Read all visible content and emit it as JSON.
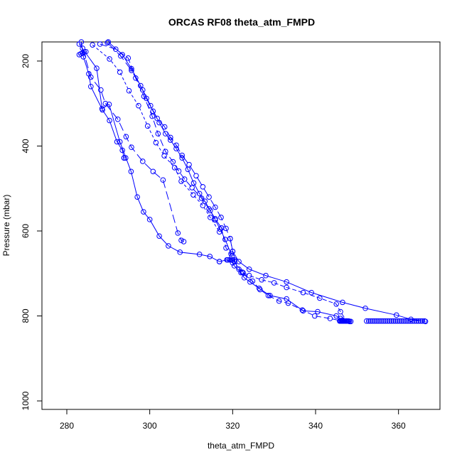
{
  "chart_data": {
    "type": "line",
    "title": "ORCAS RF08 theta_atm_FMPD",
    "xlabel": "theta_atm_FMPD",
    "ylabel": "Pressure (mbar)",
    "xlim": [
      274,
      370
    ],
    "ylim": [
      1020,
      155
    ],
    "y_reversed": true,
    "x_ticks": [
      280,
      300,
      320,
      340,
      360
    ],
    "x_tick_labels": [
      "280",
      "300",
      "320",
      "340",
      "360"
    ],
    "y_ticks": [
      200,
      400,
      600,
      800,
      1000
    ],
    "y_tick_labels": [
      "200",
      "400",
      "600",
      "800",
      "1000"
    ],
    "grid": false,
    "legend": "none",
    "line_color": "#0000ff",
    "marker": "open-circle",
    "line_style": "dashed-mixed",
    "series": [
      {
        "x": [
          283.5,
          284.0,
          285.3,
          285.8,
          288.6,
          290.3,
          292.1,
          293.4,
          293.8
        ],
        "y": [
          155,
          190,
          230,
          260,
          315,
          340,
          390,
          410,
          428
        ]
      },
      {
        "x": [
          293.8,
          294.2
        ],
        "y": [
          428,
          428
        ]
      },
      {
        "x": [
          283.0,
          287.2,
          288.5,
          290.2,
          292.8,
          295.5,
          297.0,
          298.5,
          300.0,
          302.3,
          304.5,
          307.3,
          312.0,
          314.5,
          316.8
        ],
        "y": [
          160,
          217,
          312,
          302,
          390,
          460,
          520,
          555,
          573,
          612,
          635,
          650,
          655,
          660,
          672
        ]
      },
      {
        "x": [
          283.8,
          285.8,
          288.2,
          289.3,
          292.3,
          294.3,
          295.6,
          298.3,
          300.8,
          303.2,
          306.8,
          307.6,
          308.2
        ],
        "y": [
          170,
          238,
          268,
          300,
          337,
          378,
          403,
          436,
          460,
          480,
          605,
          622,
          625
        ]
      },
      {
        "x": [
          286.2,
          290.3,
          292.8,
          295.0,
          297.3,
          299.5,
          301.5,
          303.5,
          306.0,
          307.6,
          310.5,
          312.8,
          314.6,
          316.8
        ],
        "y": [
          162,
          195,
          226,
          270,
          305,
          353,
          392,
          423,
          451,
          483,
          515,
          540,
          568,
          602
        ]
      },
      {
        "x": [
          288.0,
          291.8,
          294.8,
          296.6,
          298.6,
          300.6,
          302.0,
          303.8,
          305.6,
          307.0,
          308.4,
          310.2,
          312.5,
          314.3,
          315.8,
          317.3
        ],
        "y": [
          160,
          172,
          193,
          240,
          283,
          330,
          371,
          413,
          437,
          459,
          478,
          498,
          523,
          548,
          571,
          593
        ]
      },
      {
        "x": [
          290.0,
          293.4,
          295.6,
          297.8,
          299.2,
          300.8,
          302.3,
          303.8,
          305.0,
          306.4,
          307.8,
          309.2,
          310.6,
          312.0,
          313.3,
          314.6,
          315.8,
          317.0,
          318.2,
          319.6
        ],
        "y": [
          155,
          185,
          218,
          258,
          288,
          318,
          345,
          371,
          386,
          406,
          428,
          455,
          487,
          512,
          530,
          552,
          574,
          596,
          620,
          654
        ]
      },
      {
        "x": [
          289.8,
          293.0,
          295.6,
          298.3,
          300.2,
          301.8,
          303.6,
          305.0,
          306.4,
          307.8,
          309.5,
          311.2,
          312.8,
          314.3,
          315.8,
          317.2,
          318.4,
          319.4,
          320.0
        ],
        "y": [
          157,
          188,
          222,
          268,
          305,
          335,
          355,
          380,
          398,
          422,
          444,
          470,
          496,
          520,
          544,
          568,
          594,
          618,
          648
        ]
      },
      {
        "x": [
          316.8,
          318.6,
          320.0,
          320.4,
          322.0,
          322.8,
          324.2,
          326.4,
          329.0,
          333.0,
          337.0,
          340.5,
          345.0,
          346.0,
          346.5,
          347.5,
          348.0,
          348.2
        ],
        "y": [
          672,
          668,
          675,
          682,
          698,
          710,
          720,
          735,
          752,
          760,
          788,
          790,
          800,
          806,
          810,
          812,
          812,
          813
        ]
      },
      {
        "x": [
          317.3,
          318.4,
          319.8,
          320.5,
          322.3,
          324.8,
          326.6,
          328.6,
          331.2,
          333.4,
          336.8,
          339.8,
          343.5,
          346.5,
          348.5
        ],
        "y": [
          593,
          640,
          660,
          672,
          697,
          718,
          738,
          752,
          765,
          770,
          786,
          800,
          806,
          812,
          813
        ]
      },
      {
        "x": [
          319.4,
          320.5,
          321.5,
          322.5,
          324.0,
          327.0,
          330.0,
          333.0,
          337.0,
          341.0,
          345.0,
          346.0,
          347.5
        ],
        "y": [
          618,
          672,
          690,
          698,
          705,
          715,
          722,
          733,
          745,
          758,
          772,
          790,
          812
        ]
      },
      {
        "x": [
          320.0,
          321.5,
          324.0,
          328.0,
          333.0,
          339.0,
          346.5,
          352.0,
          359.5,
          363.0,
          366.5
        ],
        "y": [
          648,
          672,
          690,
          705,
          720,
          745,
          768,
          782,
          798,
          808,
          813
        ]
      },
      {
        "x": [
          345.8,
          346.0,
          346.2,
          346.4,
          346.6,
          346.8,
          347.0,
          347.2,
          347.4,
          347.6,
          347.8
        ],
        "y": [
          812,
          812,
          812,
          812,
          812,
          812,
          812,
          812,
          812,
          812,
          812
        ]
      },
      {
        "x": [
          352.3,
          352.8,
          353.3,
          353.8,
          354.3,
          354.8,
          355.3,
          355.8,
          356.3,
          356.8,
          357.3,
          357.8,
          358.3,
          358.8,
          359.3,
          359.8,
          360.3,
          360.8,
          361.3,
          361.8,
          362.3,
          362.8,
          363.3,
          363.8,
          364.3,
          364.8,
          365.3,
          365.8,
          366.3
        ],
        "y": [
          812,
          812,
          812,
          812,
          812,
          812,
          812,
          812,
          812,
          812,
          812,
          812,
          812,
          812,
          812,
          812,
          812,
          812,
          812,
          812,
          812,
          812,
          812,
          812,
          812,
          812,
          812,
          812,
          812
        ]
      },
      {
        "x": [
          318.8,
          319.2,
          319.6,
          320.0,
          320.4
        ],
        "y": [
          668,
          668,
          668,
          668,
          668
        ]
      },
      {
        "x": [
          283.0,
          283.4,
          283.8,
          284.2,
          284.6
        ],
        "y": [
          185,
          183,
          181,
          179,
          178
        ]
      }
    ]
  }
}
